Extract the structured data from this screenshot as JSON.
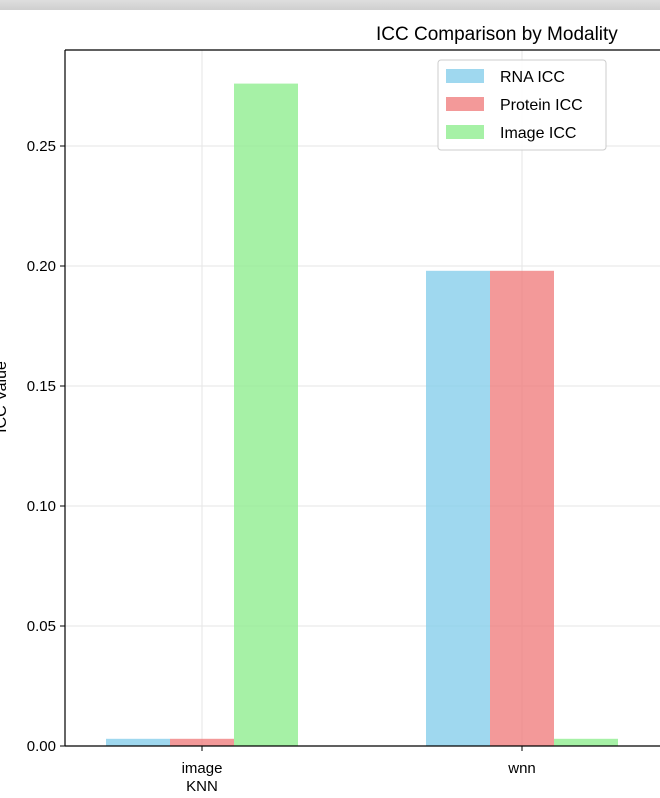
{
  "chart_data": {
    "type": "bar",
    "title": "ICC Comparison by Modality",
    "xlabel": "",
    "ylabel": "ICC Value",
    "categories": [
      "image\nKNN",
      "wnn"
    ],
    "series": [
      {
        "name": "RNA ICC",
        "color": "#87CEEB",
        "values": [
          0.003,
          0.198
        ]
      },
      {
        "name": "Protein ICC",
        "color": "#F08080",
        "values": [
          0.003,
          0.198
        ]
      },
      {
        "name": "Image ICC",
        "color": "#90EE90",
        "values": [
          0.276,
          0.003
        ]
      }
    ],
    "ylim": [
      0,
      0.29
    ],
    "yticks": [
      "0.00",
      "0.05",
      "0.10",
      "0.15",
      "0.20",
      "0.25"
    ],
    "grid": true,
    "legend_position": "top-right"
  }
}
